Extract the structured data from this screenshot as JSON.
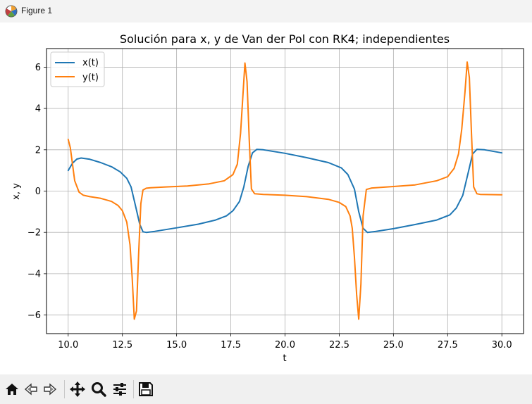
{
  "window": {
    "title": "Figure 1",
    "app_icon": "matplotlib-figure-icon"
  },
  "toolbar": {
    "buttons": [
      {
        "name": "home-button",
        "icon": "home-icon"
      },
      {
        "name": "back-button",
        "icon": "back-arrow-icon"
      },
      {
        "name": "forward-button",
        "icon": "forward-arrow-icon"
      },
      {
        "name": "pan-button",
        "icon": "move-icon"
      },
      {
        "name": "zoom-button",
        "icon": "magnifier-icon"
      },
      {
        "name": "configure-subplots-button",
        "icon": "sliders-icon"
      },
      {
        "name": "save-button",
        "icon": "floppy-disk-icon"
      }
    ]
  },
  "chart_data": {
    "type": "line",
    "title": "Solución para x, y de Van der Pol con RK4; independientes",
    "xlabel": "t",
    "ylabel": "x, y",
    "xlim": [
      9.0,
      31.0
    ],
    "ylim": [
      -6.9,
      6.9
    ],
    "xticks": [
      10.0,
      12.5,
      15.0,
      17.5,
      20.0,
      22.5,
      25.0,
      27.5,
      30.0
    ],
    "xtick_labels": [
      "10.0",
      "12.5",
      "15.0",
      "17.5",
      "20.0",
      "22.5",
      "25.0",
      "27.5",
      "30.0"
    ],
    "yticks": [
      -6,
      -4,
      -2,
      0,
      2,
      4,
      6
    ],
    "ytick_labels": [
      "−6",
      "−4",
      "−2",
      "0",
      "2",
      "4",
      "6"
    ],
    "grid": true,
    "legend": "top-left",
    "series": [
      {
        "name": "x(t)",
        "color": "#1f77b4",
        "x": [
          10.0,
          10.2,
          10.4,
          10.6,
          11.0,
          11.5,
          12.0,
          12.4,
          12.7,
          12.9,
          13.1,
          13.3,
          13.45,
          13.6,
          14.0,
          15.0,
          16.0,
          16.8,
          17.3,
          17.6,
          17.9,
          18.1,
          18.3,
          18.5,
          18.7,
          19.0,
          20.0,
          21.0,
          22.0,
          22.6,
          22.9,
          23.2,
          23.4,
          23.6,
          23.8,
          24.2,
          25.0,
          26.0,
          27.0,
          27.6,
          27.9,
          28.2,
          28.45,
          28.65,
          28.85,
          29.2,
          30.0
        ],
        "y": [
          1.0,
          1.35,
          1.55,
          1.6,
          1.54,
          1.38,
          1.18,
          0.93,
          0.62,
          0.2,
          -0.7,
          -1.6,
          -1.97,
          -2.0,
          -1.95,
          -1.78,
          -1.6,
          -1.4,
          -1.2,
          -0.95,
          -0.5,
          0.2,
          1.2,
          1.85,
          2.02,
          2.0,
          1.83,
          1.62,
          1.38,
          1.12,
          0.8,
          0.1,
          -1.0,
          -1.8,
          -2.0,
          -1.95,
          -1.82,
          -1.62,
          -1.4,
          -1.15,
          -0.82,
          -0.2,
          0.9,
          1.8,
          2.02,
          2.0,
          1.85
        ]
      },
      {
        "name": "y(t)",
        "color": "#ff7f0e",
        "x": [
          10.0,
          10.1,
          10.2,
          10.3,
          10.5,
          10.7,
          11.0,
          11.5,
          12.0,
          12.3,
          12.5,
          12.7,
          12.85,
          12.95,
          13.05,
          13.15,
          13.25,
          13.35,
          13.45,
          13.6,
          13.8,
          14.5,
          15.5,
          16.5,
          17.2,
          17.6,
          17.8,
          17.95,
          18.05,
          18.15,
          18.25,
          18.35,
          18.45,
          18.6,
          19.0,
          20.0,
          21.0,
          22.0,
          22.5,
          22.8,
          23.0,
          23.1,
          23.2,
          23.3,
          23.4,
          23.5,
          23.6,
          23.75,
          24.0,
          25.0,
          26.0,
          27.0,
          27.5,
          27.8,
          28.0,
          28.15,
          28.3,
          28.4,
          28.5,
          28.6,
          28.7,
          28.85,
          29.0,
          29.5,
          30.0
        ],
        "y": [
          2.5,
          2.1,
          1.3,
          0.5,
          -0.05,
          -0.2,
          -0.27,
          -0.35,
          -0.5,
          -0.7,
          -0.95,
          -1.5,
          -2.6,
          -4.2,
          -6.2,
          -5.8,
          -3.0,
          -0.6,
          0.05,
          0.14,
          0.16,
          0.2,
          0.25,
          0.35,
          0.5,
          0.8,
          1.3,
          2.8,
          4.5,
          6.2,
          5.3,
          2.5,
          0.1,
          -0.13,
          -0.16,
          -0.2,
          -0.27,
          -0.4,
          -0.55,
          -0.75,
          -1.2,
          -1.8,
          -3.2,
          -5.0,
          -6.2,
          -4.5,
          -1.2,
          0.08,
          0.15,
          0.22,
          0.3,
          0.5,
          0.7,
          1.1,
          1.8,
          3.0,
          4.8,
          6.25,
          5.5,
          2.8,
          0.2,
          -0.13,
          -0.16,
          -0.17,
          -0.18
        ]
      }
    ]
  }
}
